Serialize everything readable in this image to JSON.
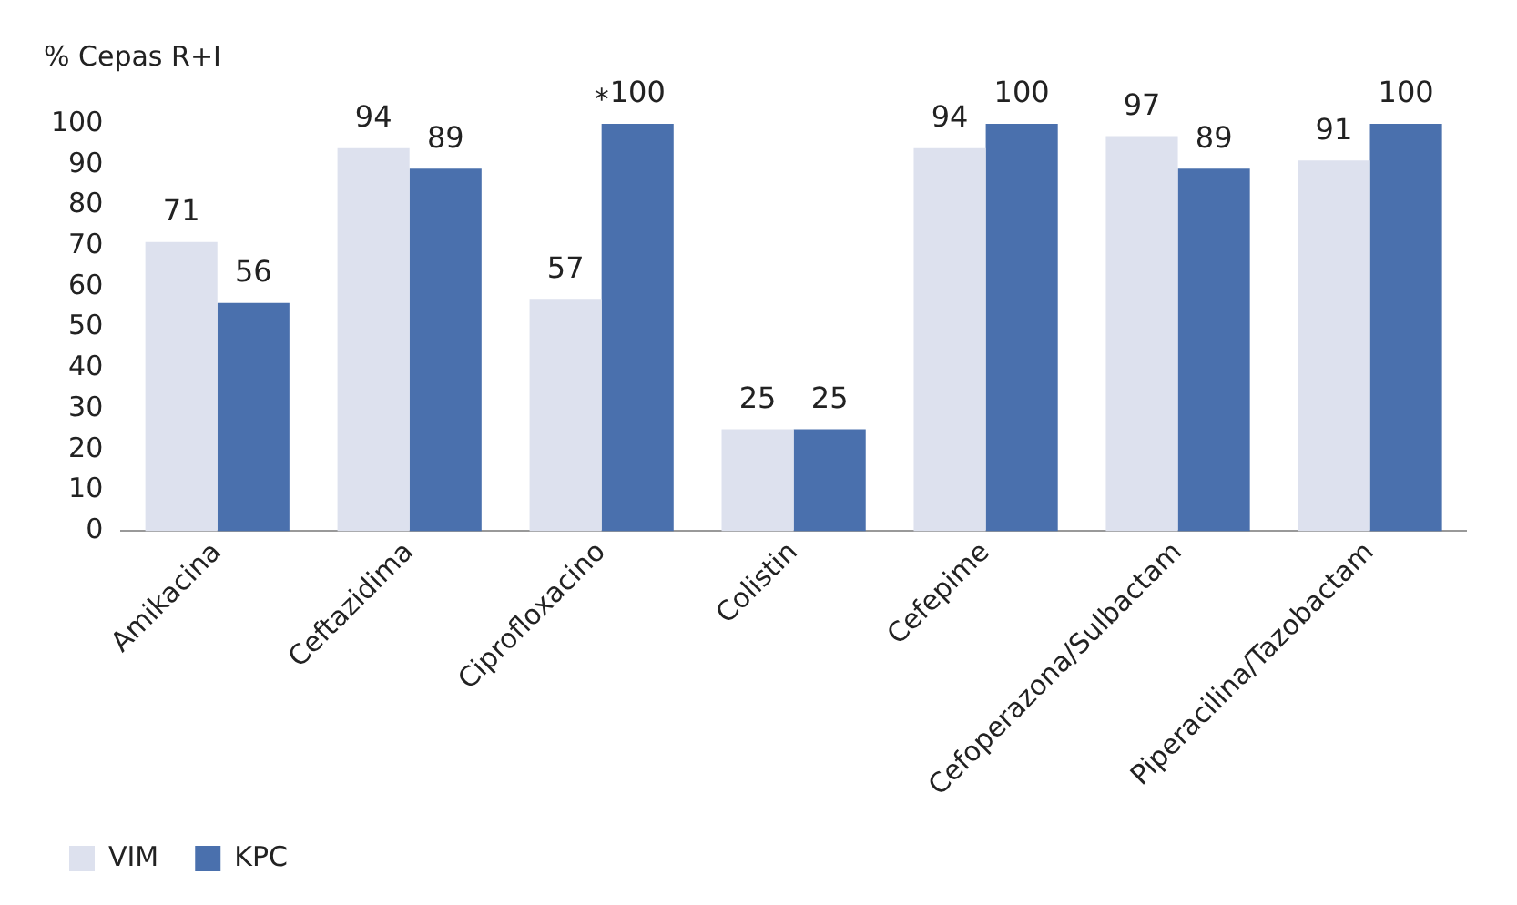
{
  "chart_data": {
    "type": "bar",
    "ylabel": "% Cepas R+I",
    "categories": [
      "Amikacina",
      "Ceftazidima",
      "Ciprofloxacino",
      "Colistin",
      "Cefepime",
      "Cefoperazona/Sulbactam",
      "Piperacilina/Tazobactam"
    ],
    "series": [
      {
        "name": "VIM",
        "color": "#dde1ee",
        "values": [
          71,
          94,
          57,
          25,
          94,
          97,
          91
        ]
      },
      {
        "name": "KPC",
        "color": "#4a70ad",
        "values": [
          56,
          89,
          100,
          25,
          100,
          89,
          100
        ]
      }
    ],
    "ylim": [
      0,
      100
    ],
    "yticks": [
      0,
      10,
      20,
      30,
      40,
      50,
      60,
      70,
      80,
      90,
      100
    ],
    "data_labels": true,
    "grid": false,
    "legend": "bottom left",
    "annotations": [
      {
        "text": "*",
        "x": "Ciprofloxacino",
        "y": 100
      }
    ]
  }
}
